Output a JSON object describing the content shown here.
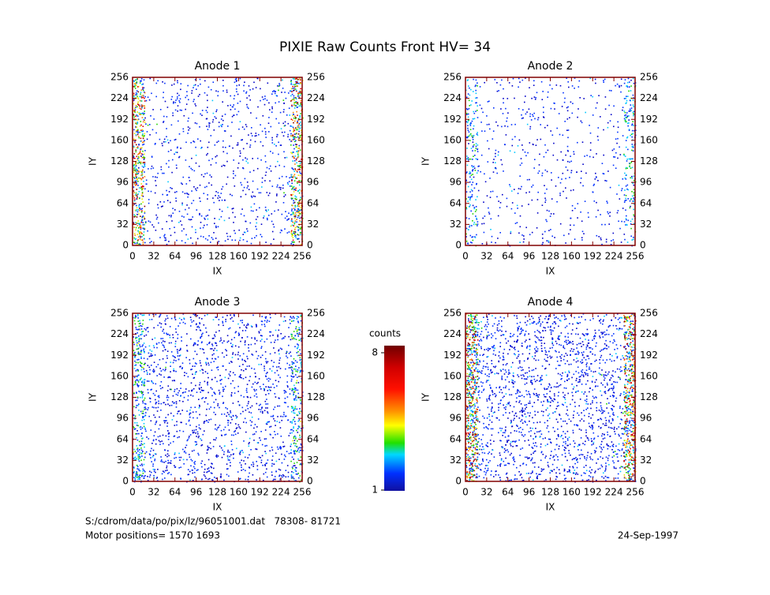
{
  "title": "PIXIE Raw Counts Front HV= 34",
  "chart_data": [
    {
      "type": "image",
      "title": "Anode 1",
      "xlabel": "IX",
      "ylabel": "IY",
      "xlim": [
        0,
        256
      ],
      "ylim": [
        0,
        256
      ],
      "xticks": [
        0,
        32,
        64,
        96,
        128,
        160,
        192,
        224,
        256
      ],
      "yticks": [
        0,
        32,
        64,
        96,
        128,
        160,
        192,
        224,
        256
      ]
    },
    {
      "type": "image",
      "title": "Anode 2",
      "xlabel": "IX",
      "ylabel": "IY",
      "xlim": [
        0,
        256
      ],
      "ylim": [
        0,
        256
      ],
      "xticks": [
        0,
        32,
        64,
        96,
        128,
        160,
        192,
        224,
        256
      ],
      "yticks": [
        0,
        32,
        64,
        96,
        128,
        160,
        192,
        224,
        256
      ]
    },
    {
      "type": "image",
      "title": "Anode 3",
      "xlabel": "IX",
      "ylabel": "IY",
      "xlim": [
        0,
        256
      ],
      "ylim": [
        0,
        256
      ],
      "xticks": [
        0,
        32,
        64,
        96,
        128,
        160,
        192,
        224,
        256
      ],
      "yticks": [
        0,
        32,
        64,
        96,
        128,
        160,
        192,
        224,
        256
      ]
    },
    {
      "type": "image",
      "title": "Anode 4",
      "xlabel": "IX",
      "ylabel": "IY",
      "xlim": [
        0,
        256
      ],
      "ylim": [
        0,
        256
      ],
      "xticks": [
        0,
        32,
        64,
        96,
        128,
        160,
        192,
        224,
        256
      ],
      "yticks": [
        0,
        32,
        64,
        96,
        128,
        160,
        192,
        224,
        256
      ]
    }
  ],
  "colorbar": {
    "label": "counts",
    "lim": [
      1,
      8
    ],
    "ticks": [
      1,
      8
    ]
  },
  "footer": {
    "file": "S:/cdrom/data/po/pix/lz/96051001.dat   78308- 81721",
    "motor": "Motor positions= 1570 1693",
    "date": "24-Sep-1997"
  }
}
